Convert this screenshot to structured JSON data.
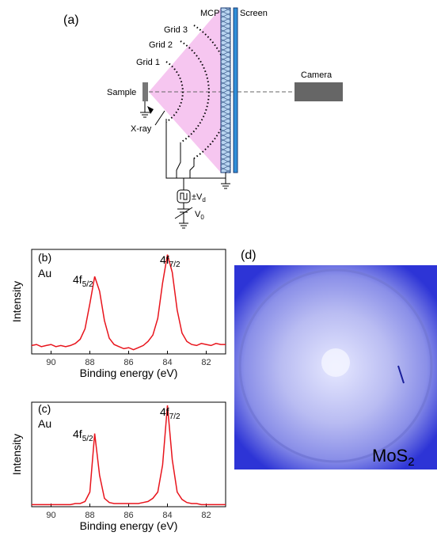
{
  "diagram": {
    "label": "(a)",
    "mcp": "MCP",
    "screen": "Screen",
    "grid3": "Grid 3",
    "grid2": "Grid 2",
    "grid1": "Grid 1",
    "sample": "Sample",
    "xray": "X-ray",
    "camera": "Camera",
    "vd": {
      "main": "±V",
      "sub": "d"
    },
    "v0": {
      "main": "V",
      "sub": "0"
    }
  },
  "chart_data": [
    {
      "type": "line",
      "xlabel": "Binding energy (eV)",
      "ylabel": "Intensity",
      "xlim": [
        91,
        81
      ],
      "xticks": [
        90,
        88,
        86,
        84,
        82
      ],
      "ylim": [
        0,
        100
      ],
      "annotations": [
        {
          "text": "(b)"
        },
        {
          "text": "Au"
        },
        {
          "text": "4f",
          "sub": "5/2"
        },
        {
          "text": "4f",
          "sub": "7/2"
        }
      ],
      "x": [
        91,
        90.75,
        90.5,
        90.25,
        90,
        89.75,
        89.5,
        89.25,
        89,
        88.75,
        88.5,
        88.25,
        88,
        87.75,
        87.5,
        87.25,
        87,
        86.75,
        86.5,
        86.25,
        86,
        85.75,
        85.5,
        85.25,
        85,
        84.75,
        84.5,
        84.25,
        84,
        83.75,
        83.5,
        83.25,
        83,
        82.75,
        82.5,
        82.25,
        82,
        81.75,
        81.5,
        81.25,
        81
      ],
      "series": [
        {
          "color": "#e8141c",
          "values": [
            8,
            9,
            7,
            8,
            9,
            7,
            8,
            7,
            8,
            10,
            14,
            24,
            48,
            74,
            60,
            32,
            15,
            9,
            7,
            5,
            6,
            4,
            6,
            8,
            12,
            18,
            34,
            68,
            95,
            78,
            42,
            20,
            12,
            9,
            8,
            10,
            9,
            8,
            10,
            9,
            9
          ]
        }
      ]
    },
    {
      "type": "line",
      "xlabel": "Binding energy (eV)",
      "ylabel": "Intensity",
      "xlim": [
        91,
        81
      ],
      "xticks": [
        90,
        88,
        86,
        84,
        82
      ],
      "ylim": [
        0,
        100
      ],
      "annotations": [
        {
          "text": "(c)"
        },
        {
          "text": "Au"
        },
        {
          "text": "4f",
          "sub": "5/2"
        },
        {
          "text": "4f",
          "sub": "7/2"
        }
      ],
      "x": [
        91,
        90.75,
        90.5,
        90.25,
        90,
        89.75,
        89.5,
        89.25,
        89,
        88.75,
        88.5,
        88.25,
        88,
        87.75,
        87.5,
        87.25,
        87,
        86.75,
        86.5,
        86.25,
        86,
        85.75,
        85.5,
        85.25,
        85,
        84.75,
        84.5,
        84.25,
        84,
        83.75,
        83.5,
        83.25,
        83,
        82.75,
        82.5,
        82.25,
        82,
        81.75,
        81.5,
        81.25,
        81
      ],
      "series": [
        {
          "color": "#e8141c",
          "values": [
            2,
            2,
            2,
            2,
            2,
            2,
            2,
            2,
            2,
            3,
            3,
            5,
            14,
            70,
            30,
            8,
            4,
            3,
            3,
            3,
            3,
            3,
            3,
            4,
            5,
            8,
            14,
            40,
            97,
            45,
            14,
            7,
            4,
            3,
            3,
            2,
            2,
            2,
            2,
            2,
            2
          ]
        }
      ]
    }
  ],
  "image": {
    "label": "(d)",
    "caption": {
      "main": "MoS",
      "sub": "2"
    }
  }
}
